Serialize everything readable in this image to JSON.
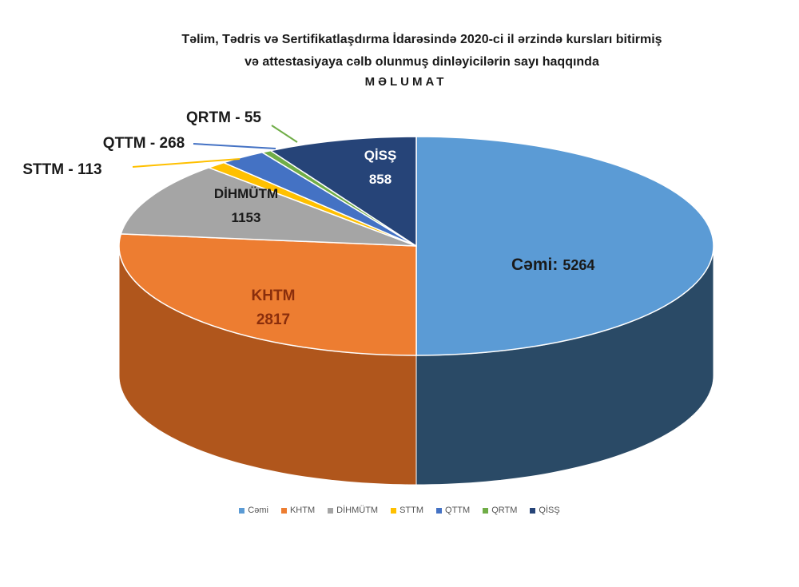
{
  "title": {
    "line1": "Təlim, Tədris və Sertifikatlaşdırma  İdarəsində 2020-ci il ərzində kursları bitirmiş",
    "line2": "və attestasiyaya cəlb olunmuş dinləyicilərin sayı haqqında",
    "heading": "MƏLUMAT"
  },
  "chart_data": {
    "type": "pie",
    "title": "Təlim, Tədris və Sertifikatlaşdırma İdarəsində 2020-ci il ərzində kursları bitirmiş və attestasiyaya cəlb olunmuş dinləyicilərin sayı haqqında MƏLUMAT",
    "legend_position": "bottom",
    "slices": [
      {
        "name": "Cəmi",
        "value": 5264,
        "color": "#5b9bd5",
        "side": "#2a4a66",
        "label_line1": "Cəmi:",
        "label_line2": "5264"
      },
      {
        "name": "KHTM",
        "value": 2817,
        "color": "#ed7d31",
        "side": "#b0561c",
        "label_line1": "KHTM",
        "label_line2": "2817"
      },
      {
        "name": "DİHMÜTM",
        "value": 1153,
        "color": "#a5a5a5",
        "side": "#7a7a7a",
        "label_line1": "DİHMÜTM",
        "label_line2": "1153"
      },
      {
        "name": "STTM",
        "value": 113,
        "color": "#ffc000",
        "side": "#b88a00",
        "label": "STTM - 113"
      },
      {
        "name": "QTTM",
        "value": 268,
        "color": "#4472c4",
        "side": "#2c4c86",
        "label": "QTTM - 268"
      },
      {
        "name": "QRTM",
        "value": 55,
        "color": "#70ad47",
        "side": "#4b7a2e",
        "label": "QRTM - 55"
      },
      {
        "name": "QİSŞ",
        "value": 858,
        "color": "#264478",
        "side": "#172a4a",
        "label_line1": "QİSŞ",
        "label_line2": "858"
      }
    ]
  }
}
